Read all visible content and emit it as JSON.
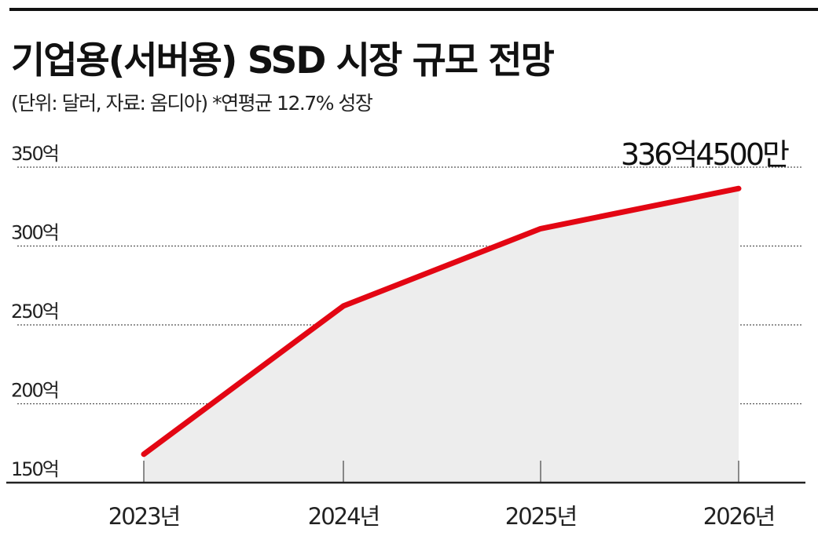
{
  "chart_data": {
    "type": "area",
    "title": "기업용(서버용) SSD 시장 규모 전망",
    "subtitle": "(단위: 달러, 자료: 옴디아) *연평균 12.7% 성장",
    "categories": [
      "2023년",
      "2024년",
      "2025년",
      "2026년"
    ],
    "values": [
      168,
      262,
      311,
      336.45
    ],
    "unit": "억 달러",
    "yticks": [
      150,
      200,
      250,
      300,
      350
    ],
    "ytick_labels": [
      "150억",
      "200억",
      "250억",
      "300억",
      "350억"
    ],
    "ylim": [
      150,
      350
    ],
    "grid": true,
    "annotation": "336억4500만",
    "colors": {
      "line": "#e30613",
      "fill": "#ededed",
      "grid": "#555555"
    }
  }
}
